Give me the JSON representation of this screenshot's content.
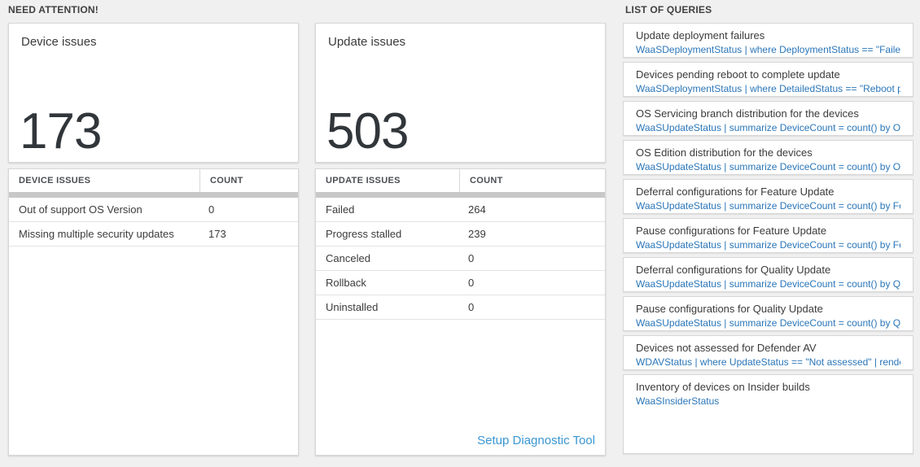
{
  "sections": {
    "need_attention_label": "NEED ATTENTION!",
    "queries_label": "LIST OF QUERIES"
  },
  "device_card": {
    "title": "Device issues",
    "value": "173",
    "table": {
      "header_issue": "DEVICE ISSUES",
      "header_count": "COUNT",
      "rows": [
        {
          "label": "Out of support OS Version",
          "count": "0"
        },
        {
          "label": "Missing multiple security updates",
          "count": "173"
        }
      ]
    }
  },
  "update_card": {
    "title": "Update issues",
    "value": "503",
    "table": {
      "header_issue": "UPDATE ISSUES",
      "header_count": "COUNT",
      "rows": [
        {
          "label": "Failed",
          "count": "264"
        },
        {
          "label": "Progress stalled",
          "count": "239"
        },
        {
          "label": "Canceled",
          "count": "0"
        },
        {
          "label": "Rollback",
          "count": "0"
        },
        {
          "label": "Uninstalled",
          "count": "0"
        }
      ]
    },
    "diagnostic_link": "Setup Diagnostic Tool"
  },
  "queries": [
    {
      "title": "Update deployment failures",
      "query": "WaaSDeploymentStatus | where DeploymentStatus == \"Failed\" |..."
    },
    {
      "title": "Devices pending reboot to complete update",
      "query": "WaaSDeploymentStatus | where DetailedStatus == \"Reboot pend..."
    },
    {
      "title": "OS Servicing branch distribution for the devices",
      "query": "WaaSUpdateStatus | summarize DeviceCount = count() by OSSer..."
    },
    {
      "title": "OS Edition distribution for the devices",
      "query": "WaaSUpdateStatus | summarize DeviceCount = count() by OSEdit..."
    },
    {
      "title": "Deferral configurations for Feature Update",
      "query": "WaaSUpdateStatus | summarize DeviceCount = count() by Featur..."
    },
    {
      "title": "Pause configurations for Feature Update",
      "query": "WaaSUpdateStatus | summarize DeviceCount = count() by Featur..."
    },
    {
      "title": "Deferral configurations for Quality Update",
      "query": "WaaSUpdateStatus | summarize DeviceCount = count() by Qualit..."
    },
    {
      "title": "Pause configurations for Quality Update",
      "query": "WaaSUpdateStatus | summarize DeviceCount = count() by Qualit..."
    },
    {
      "title": "Devices not assessed for Defender AV",
      "query": "WDAVStatus | where UpdateStatus == \"Not assessed\" | render ta..."
    },
    {
      "title": "Inventory of devices on Insider builds",
      "query": "WaaSInsiderStatus"
    }
  ],
  "colors": {
    "page_background": "#f0f0f0",
    "tile_background": "#ffffff",
    "tile_border": "#d7d7d7",
    "kpi_number": "#31363b",
    "query_code_blue": "#2a76b9",
    "diagnostic_link_blue": "#3a96d2",
    "scrollbar_gray": "#c8c8c8"
  }
}
